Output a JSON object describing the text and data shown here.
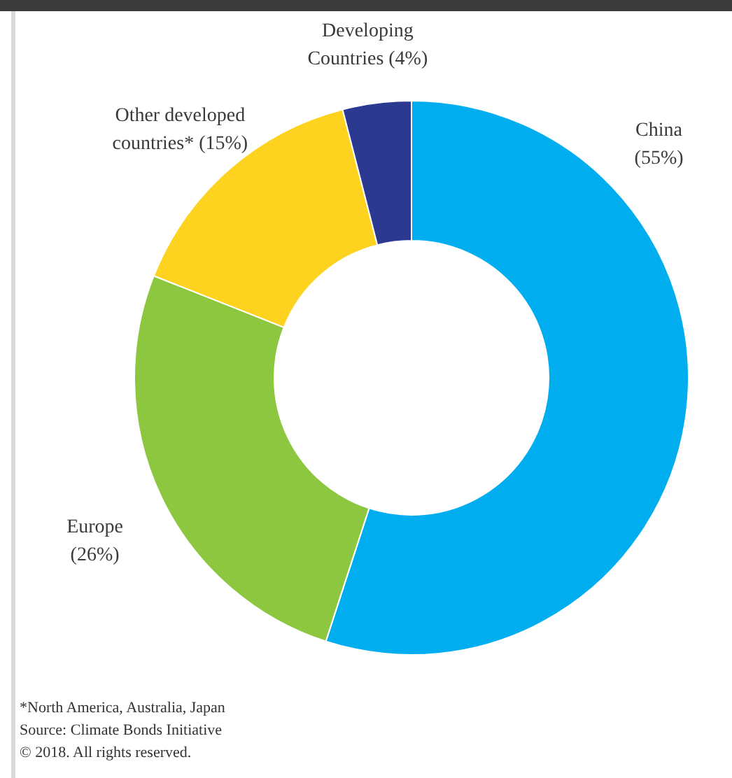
{
  "chart_data": {
    "type": "donut",
    "categories": [
      "China",
      "Europe",
      "Other developed countries*",
      "Developing Countries"
    ],
    "values": [
      55,
      26,
      15,
      4
    ],
    "value_labels": [
      "(55%)",
      "(26%)",
      "(15%)",
      "(4%)"
    ],
    "colors": [
      "#00aeef",
      "#8dc63f",
      "#fdd31f",
      "#2b3990"
    ],
    "annotations": [
      "*North America, Australia, Japan",
      "Source: Climate Bonds Initiative",
      "© 2018. All rights reserved."
    ]
  }
}
